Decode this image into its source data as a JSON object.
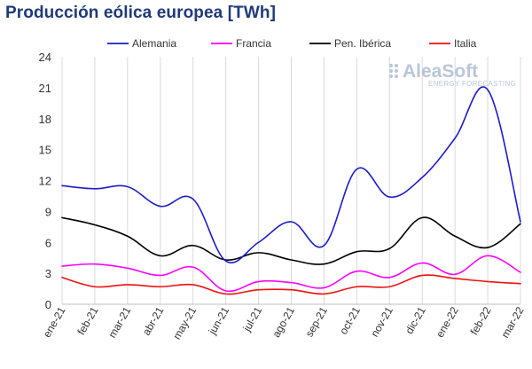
{
  "chart_data": {
    "type": "line",
    "title": "Producción eólica europea [TWh]",
    "categories": [
      "ene-21",
      "feb-21",
      "mar-21",
      "abr-21",
      "may-21",
      "jun-21",
      "jul-21",
      "ago-21",
      "sep-21",
      "oct-21",
      "nov-21",
      "dic-21",
      "ene-22",
      "feb-22",
      "mar-22"
    ],
    "series": [
      {
        "name": "Alemania",
        "color": "#1c1cc8",
        "values": [
          11.5,
          11.2,
          11.4,
          9.5,
          10.2,
          4.2,
          6.0,
          8.0,
          5.7,
          13.1,
          10.4,
          12.3,
          16.1,
          20.8,
          8.0
        ]
      },
      {
        "name": "Francia",
        "color": "#ff00ff",
        "values": [
          3.7,
          3.9,
          3.5,
          2.8,
          3.6,
          1.3,
          2.2,
          2.1,
          1.6,
          3.2,
          2.6,
          4.0,
          2.9,
          4.7,
          3.1
        ]
      },
      {
        "name": "Pen. Ibérica",
        "color": "#000000",
        "values": [
          8.4,
          7.7,
          6.6,
          4.7,
          5.7,
          4.3,
          5.0,
          4.3,
          3.9,
          5.1,
          5.4,
          8.4,
          6.6,
          5.5,
          7.8
        ]
      },
      {
        "name": "Italia",
        "color": "#ee1111",
        "values": [
          2.6,
          1.7,
          1.9,
          1.7,
          1.9,
          1.0,
          1.4,
          1.4,
          1.0,
          1.7,
          1.7,
          2.8,
          2.5,
          2.2,
          2.0
        ]
      }
    ],
    "y_ticks": [
      0,
      3,
      6,
      9,
      12,
      15,
      18,
      21,
      24
    ],
    "ylim": [
      0,
      24
    ],
    "grid": "vertical",
    "legend_position": "top"
  },
  "watermark": {
    "brand": "AleaSoft",
    "tagline": "ENERGY FORECASTING"
  }
}
